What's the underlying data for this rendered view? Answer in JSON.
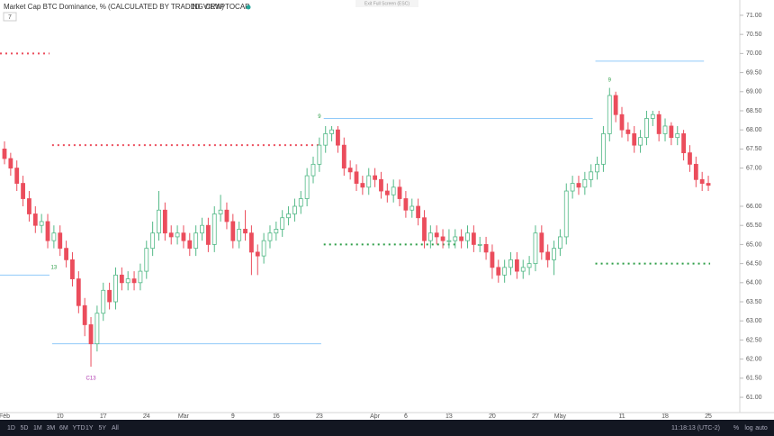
{
  "chart_data": {
    "type": "candlestick",
    "title": "Market Cap BTC Dominance, % (CALCULATED BY TRADINGVIEW)",
    "interval": "1D",
    "exchange": "CRYPTOCAP",
    "indicator_count": "7",
    "fullscreen_hint": "Exit Full Screen (ESC)",
    "x": [
      "Feb 1",
      "Feb 2",
      "Feb 3",
      "Feb 4",
      "Feb 5",
      "Feb 6",
      "Feb 7",
      "Feb 8",
      "Feb 9",
      "Feb 10",
      "Feb 11",
      "Feb 12",
      "Feb 13",
      "Feb 14",
      "Feb 15",
      "Feb 16",
      "Feb 17",
      "Feb 18",
      "Feb 19",
      "Feb 20",
      "Feb 21",
      "Feb 22",
      "Feb 23",
      "Feb 24",
      "Feb 25",
      "Feb 26",
      "Feb 27",
      "Feb 28",
      "Feb 29",
      "Mar 1",
      "Mar 2",
      "Mar 3",
      "Mar 4",
      "Mar 5",
      "Mar 6",
      "Mar 7",
      "Mar 8",
      "Mar 9",
      "Mar 10",
      "Mar 11",
      "Mar 12",
      "Mar 13",
      "Mar 14",
      "Mar 15",
      "Mar 16",
      "Mar 17",
      "Mar 18",
      "Mar 19",
      "Mar 20",
      "Mar 21",
      "Mar 22",
      "Mar 23",
      "Mar 24",
      "Mar 25",
      "Mar 26",
      "Mar 27",
      "Mar 28",
      "Mar 29",
      "Mar 30",
      "Mar 31",
      "Apr 1",
      "Apr 2",
      "Apr 3",
      "Apr 4",
      "Apr 5",
      "Apr 6",
      "Apr 7",
      "Apr 8",
      "Apr 9",
      "Apr 10",
      "Apr 11",
      "Apr 12",
      "Apr 13",
      "Apr 14",
      "Apr 15",
      "Apr 16",
      "Apr 17",
      "Apr 18",
      "Apr 19",
      "Apr 20",
      "Apr 21",
      "Apr 22",
      "Apr 23",
      "Apr 24",
      "Apr 25",
      "Apr 26",
      "Apr 27",
      "Apr 28",
      "Apr 29",
      "Apr 30",
      "May 1",
      "May 2",
      "May 3",
      "May 4",
      "May 5",
      "May 6",
      "May 7",
      "May 8",
      "May 9",
      "May 10",
      "May 11",
      "May 12",
      "May 13",
      "May 14",
      "May 15",
      "May 16",
      "May 17",
      "May 18",
      "May 19",
      "May 20",
      "May 21",
      "May 22",
      "May 23",
      "May 24",
      "May 25"
    ],
    "open": [
      67.5,
      67.25,
      67.0,
      66.6,
      66.2,
      65.8,
      65.5,
      65.6,
      65.1,
      65.3,
      64.9,
      64.6,
      64.1,
      63.4,
      62.9,
      62.4,
      63.2,
      63.8,
      63.5,
      64.2,
      64.0,
      64.1,
      64.0,
      64.3,
      64.9,
      65.3,
      65.9,
      65.3,
      65.2,
      65.3,
      65.1,
      64.9,
      65.3,
      65.5,
      65.0,
      65.8,
      65.9,
      65.6,
      65.1,
      65.4,
      65.3,
      64.8,
      64.7,
      65.1,
      65.3,
      65.4,
      65.7,
      65.8,
      66.0,
      66.2,
      66.8,
      67.1,
      67.6,
      67.9,
      68.0,
      67.6,
      67.0,
      66.9,
      66.6,
      66.5,
      66.8,
      66.7,
      66.4,
      66.3,
      66.5,
      66.2,
      65.9,
      66.0,
      65.7,
      65.1,
      65.3,
      65.2,
      65.1,
      65.1,
      65.2,
      65.1,
      65.3,
      65.0,
      65.0,
      64.8,
      64.4,
      64.2,
      64.4,
      64.6,
      64.3,
      64.4,
      64.5,
      65.3,
      64.8,
      64.6,
      64.9,
      65.2,
      66.4,
      66.6,
      66.5,
      66.7,
      66.9,
      67.1,
      67.9,
      68.9,
      68.4,
      68.0,
      67.9,
      67.6,
      67.8,
      68.3,
      68.4,
      67.9,
      68.1,
      67.8,
      67.9,
      67.4,
      67.1,
      66.7,
      66.6
    ],
    "high": [
      67.7,
      67.4,
      67.2,
      66.8,
      66.4,
      66.0,
      65.8,
      65.8,
      65.5,
      65.5,
      65.1,
      64.8,
      64.3,
      63.6,
      63.1,
      63.4,
      64.0,
      64.0,
      64.4,
      64.4,
      64.3,
      64.3,
      64.5,
      65.1,
      65.6,
      66.4,
      66.1,
      65.5,
      65.5,
      65.5,
      65.3,
      65.5,
      65.7,
      65.7,
      66.0,
      66.3,
      66.1,
      65.8,
      65.6,
      65.9,
      65.5,
      65.0,
      65.3,
      65.5,
      65.6,
      65.9,
      66.0,
      66.2,
      66.4,
      67.0,
      67.3,
      67.8,
      68.1,
      68.1,
      68.1,
      67.8,
      67.2,
      67.1,
      66.8,
      67.0,
      67.0,
      66.9,
      66.6,
      66.7,
      66.7,
      66.4,
      66.2,
      66.2,
      65.9,
      65.5,
      65.5,
      65.4,
      65.4,
      65.4,
      65.4,
      65.5,
      65.5,
      65.2,
      65.2,
      65.0,
      64.6,
      64.6,
      64.8,
      64.8,
      64.6,
      64.7,
      65.5,
      65.5,
      65.0,
      65.1,
      65.4,
      66.6,
      66.8,
      66.8,
      66.9,
      67.1,
      67.3,
      68.1,
      69.1,
      69.0,
      68.6,
      68.2,
      68.1,
      68.0,
      68.5,
      68.5,
      68.5,
      68.3,
      68.2,
      68.1,
      68.0,
      67.6,
      67.3,
      66.9,
      66.8
    ],
    "low": [
      67.1,
      66.8,
      66.4,
      66.0,
      65.6,
      65.3,
      65.3,
      64.9,
      64.9,
      64.7,
      64.4,
      63.9,
      63.2,
      62.6,
      61.8,
      62.2,
      63.0,
      63.3,
      63.3,
      63.8,
      63.8,
      63.8,
      63.8,
      64.1,
      64.7,
      65.1,
      65.1,
      65.0,
      65.0,
      64.9,
      64.7,
      64.7,
      65.1,
      64.8,
      64.8,
      65.6,
      65.4,
      64.9,
      64.9,
      65.1,
      64.2,
      64.2,
      64.5,
      64.9,
      65.1,
      65.2,
      65.5,
      65.6,
      65.8,
      66.0,
      66.6,
      66.9,
      67.4,
      67.7,
      67.4,
      66.8,
      66.7,
      66.4,
      66.3,
      66.3,
      66.5,
      66.2,
      66.1,
      66.1,
      66.0,
      65.7,
      65.7,
      65.5,
      64.9,
      64.9,
      65.0,
      64.9,
      64.9,
      64.9,
      64.9,
      64.9,
      64.8,
      64.8,
      64.6,
      64.1,
      64.0,
      64.0,
      64.2,
      64.1,
      64.1,
      64.2,
      64.3,
      64.6,
      64.4,
      64.2,
      64.7,
      65.0,
      66.2,
      66.3,
      66.3,
      66.5,
      66.7,
      66.9,
      67.7,
      68.2,
      67.8,
      67.7,
      67.4,
      67.4,
      67.6,
      68.1,
      67.7,
      67.7,
      67.6,
      67.6,
      67.2,
      66.9,
      66.5,
      66.4,
      66.4
    ],
    "close": [
      67.25,
      67.0,
      66.6,
      66.2,
      65.8,
      65.5,
      65.6,
      65.1,
      65.3,
      64.9,
      64.6,
      64.1,
      63.4,
      62.9,
      62.4,
      63.2,
      63.8,
      63.5,
      64.2,
      64.0,
      64.1,
      64.0,
      64.3,
      64.9,
      65.3,
      65.9,
      65.3,
      65.2,
      65.3,
      65.1,
      64.9,
      65.3,
      65.5,
      65.0,
      65.8,
      65.9,
      65.6,
      65.1,
      65.4,
      65.3,
      64.8,
      64.7,
      65.1,
      65.3,
      65.4,
      65.7,
      65.8,
      66.0,
      66.2,
      66.8,
      67.1,
      67.6,
      67.9,
      68.0,
      67.6,
      67.0,
      66.9,
      66.6,
      66.5,
      66.8,
      66.7,
      66.4,
      66.3,
      66.5,
      66.2,
      65.9,
      66.0,
      65.7,
      65.1,
      65.3,
      65.2,
      65.1,
      65.1,
      65.2,
      65.1,
      65.3,
      65.0,
      65.0,
      64.8,
      64.4,
      64.2,
      64.4,
      64.6,
      64.3,
      64.4,
      64.5,
      65.3,
      64.8,
      64.6,
      64.9,
      65.2,
      66.4,
      66.6,
      66.5,
      66.7,
      66.9,
      67.1,
      67.9,
      68.9,
      68.4,
      68.0,
      67.9,
      67.6,
      67.8,
      68.3,
      68.4,
      67.9,
      68.1,
      67.8,
      67.9,
      67.4,
      67.1,
      66.7,
      66.6,
      66.55
    ],
    "up_color": "#53b987",
    "down_color": "#eb4d5c",
    "ylim": [
      60.6,
      71.4
    ],
    "yticks": [
      {
        "value": 61,
        "label": "61.00"
      },
      {
        "value": 61.5,
        "label": "61.50"
      },
      {
        "value": 62,
        "label": "62.00"
      },
      {
        "value": 62.5,
        "label": "62.50"
      },
      {
        "value": 63,
        "label": "63.00"
      },
      {
        "value": 63.5,
        "label": "63.50"
      },
      {
        "value": 64,
        "label": "64.00"
      },
      {
        "value": 64.5,
        "label": "64.50"
      },
      {
        "value": 65,
        "label": "65.00"
      },
      {
        "value": 65.5,
        "label": "65.50"
      },
      {
        "value": 66,
        "label": "66.00"
      },
      {
        "value": 67,
        "label": "67.00"
      },
      {
        "value": 67.5,
        "label": "67.50"
      },
      {
        "value": 68,
        "label": "68.00"
      },
      {
        "value": 68.5,
        "label": "68.50"
      },
      {
        "value": 69,
        "label": "69.00"
      },
      {
        "value": 69.5,
        "label": "69.50"
      },
      {
        "value": 70,
        "label": "70.00"
      },
      {
        "value": 70.5,
        "label": "70.50"
      },
      {
        "value": 71,
        "label": "71.00"
      }
    ],
    "xticks": [
      {
        "value": "Feb 1",
        "label": "Feb"
      },
      {
        "value": "Feb 10",
        "label": "10"
      },
      {
        "value": "Feb 17",
        "label": "17"
      },
      {
        "value": "Feb 24",
        "label": "24"
      },
      {
        "value": "Mar 1",
        "label": "Mar"
      },
      {
        "value": "Mar 9",
        "label": "9"
      },
      {
        "value": "Mar 16",
        "label": "16"
      },
      {
        "value": "Mar 23",
        "label": "23"
      },
      {
        "value": "Apr 1",
        "label": "Apr"
      },
      {
        "value": "Apr 6",
        "label": "6"
      },
      {
        "value": "Apr 13",
        "label": "13"
      },
      {
        "value": "Apr 20",
        "label": "20"
      },
      {
        "value": "Apr 27",
        "label": "27"
      },
      {
        "value": "May 1",
        "label": "May"
      },
      {
        "value": "May 11",
        "label": "11"
      },
      {
        "value": "May 18",
        "label": "18"
      },
      {
        "value": "May 25",
        "label": "25"
      }
    ],
    "grid": false,
    "levels": [
      {
        "value": 70.0,
        "color": "#eb4d5c",
        "style": "dotted",
        "from": "Feb 1",
        "to": "Feb 8"
      },
      {
        "value": 64.2,
        "color": "#90caf9",
        "style": "solid",
        "from": "Feb 1",
        "to": "Feb 8"
      },
      {
        "value": 67.6,
        "color": "#eb4d5c",
        "style": "dotted",
        "from": "Feb 9",
        "to": "Mar 23"
      },
      {
        "value": 62.4,
        "color": "#90caf9",
        "style": "solid",
        "from": "Feb 9",
        "to": "Mar 23"
      },
      {
        "value": 65.0,
        "color": "#2e9e48",
        "style": "dotted",
        "from": "Mar 24",
        "to": "Apr 14"
      },
      {
        "value": 68.3,
        "color": "#90caf9",
        "style": "solid",
        "from": "Mar 24",
        "to": "May 6"
      },
      {
        "value": 69.8,
        "color": "#90caf9",
        "style": "solid",
        "from": "May 7",
        "to": "May 24"
      },
      {
        "value": 64.5,
        "color": "#2e9e48",
        "style": "dotted",
        "from": "May 7",
        "to": "May 25"
      }
    ],
    "annotations": [
      {
        "text": "C13",
        "x": "Feb 15",
        "y": 61.5,
        "color": "#b03ab0"
      },
      {
        "text": "13",
        "x": "Feb 9",
        "y": 64.4,
        "color": "#2e9e48"
      },
      {
        "text": "9",
        "x": "Mar 23",
        "y": 68.35,
        "color": "#2e9e48"
      },
      {
        "text": "9",
        "x": "May 9",
        "y": 69.3,
        "color": "#2e9e48"
      }
    ],
    "toolbar": {
      "ranges": [
        "1D",
        "5D",
        "1M",
        "3M",
        "6M",
        "YTD",
        "1Y",
        "5Y",
        "All"
      ],
      "clock": "11:18:13 (UTC-2)",
      "toggles": [
        "%",
        "log",
        "auto"
      ]
    }
  }
}
